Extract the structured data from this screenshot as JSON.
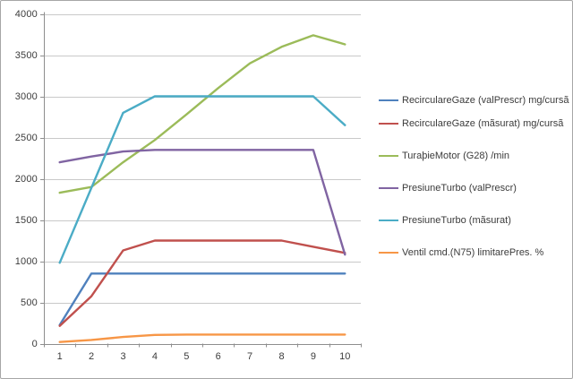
{
  "chart_data": {
    "type": "line",
    "title": "",
    "xlabel": "",
    "ylabel": "",
    "x": [
      1,
      2,
      3,
      4,
      5,
      6,
      7,
      8,
      9,
      10
    ],
    "ylim": [
      0,
      4000
    ],
    "ytick_step": 500,
    "grid": true,
    "legend_position": "right",
    "series": [
      {
        "name": "RecirculareGaze (valPrescr) mg/cursã",
        "color": "#4f81bd",
        "values": [
          225,
          850,
          850,
          850,
          850,
          850,
          850,
          850,
          850,
          850
        ]
      },
      {
        "name": "RecirculareGaze (mãsurat)  mg/cursã",
        "color": "#c0504d",
        "values": [
          215,
          575,
          1130,
          1250,
          1250,
          1250,
          1250,
          1250,
          1175,
          1100
        ]
      },
      {
        "name": "TuraþieMotor (G28)  /min",
        "color": "#9bbb59",
        "values": [
          1830,
          1900,
          2200,
          2470,
          2780,
          3100,
          3400,
          3600,
          3740,
          3630
        ]
      },
      {
        "name": "PresiuneTurbo (valPrescr)",
        "color": "#8064a2",
        "values": [
          2200,
          2270,
          2330,
          2350,
          2350,
          2350,
          2350,
          2350,
          2350,
          1080
        ]
      },
      {
        "name": "PresiuneTurbo (mãsurat)",
        "color": "#4bacc6",
        "values": [
          980,
          1890,
          2800,
          3000,
          3000,
          3000,
          3000,
          3000,
          3000,
          2650
        ]
      },
      {
        "name": "Ventil cmd.(N75) limitarePres.  %",
        "color": "#f79646",
        "values": [
          20,
          45,
          80,
          105,
          110,
          110,
          110,
          110,
          110,
          110
        ]
      }
    ]
  }
}
